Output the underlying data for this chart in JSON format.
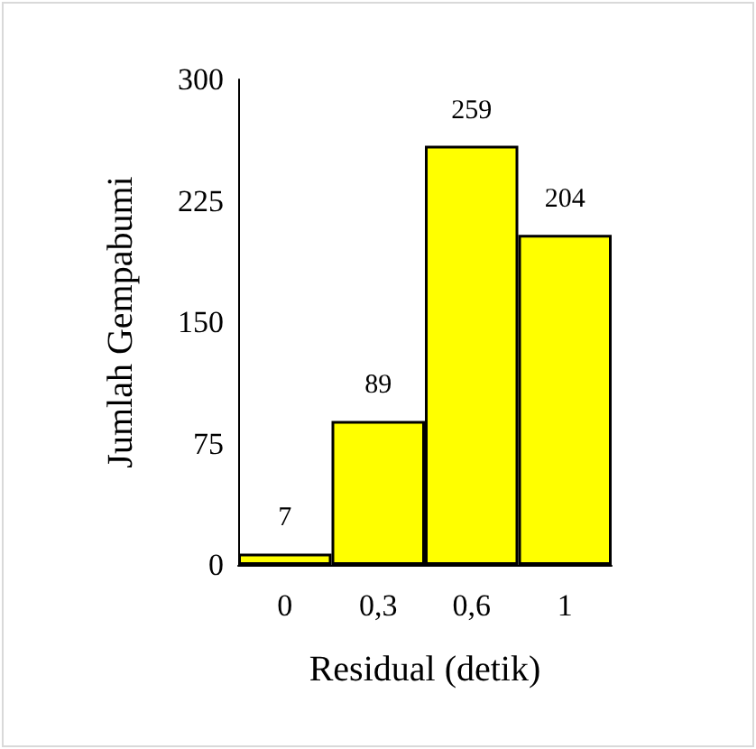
{
  "chart_data": {
    "type": "bar",
    "xlabel": "Residual (detik)",
    "ylabel": "Jumlah Gempabumi",
    "categories": [
      "0",
      "0,3",
      "0,6",
      "1"
    ],
    "values": [
      7,
      89,
      259,
      204
    ],
    "color": "#ffff00",
    "ylim": [
      0,
      300
    ],
    "yticks": [
      0,
      75,
      150,
      225,
      300
    ],
    "data_labels": true
  }
}
